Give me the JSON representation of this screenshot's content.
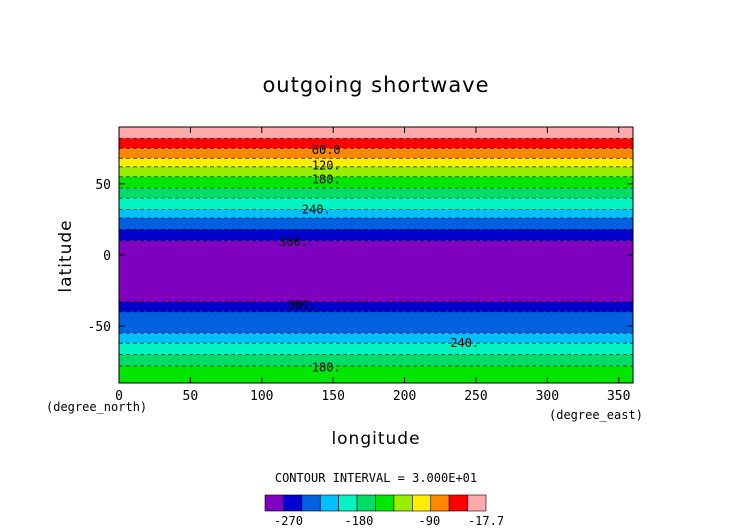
{
  "chart_data": {
    "type": "heatmap",
    "title": "outgoing shortwave",
    "xlabel": "longitude",
    "ylabel": "latitude",
    "x_unit": "(degree_east)",
    "y_unit": "(degree_north)",
    "xlim": [
      0,
      360
    ],
    "ylim": [
      -90,
      90
    ],
    "x_ticks": [
      0,
      50,
      100,
      150,
      200,
      250,
      300,
      350
    ],
    "y_ticks": [
      -50,
      0,
      50
    ],
    "contour_interval_label": "CONTOUR INTERVAL = 3.000E+01",
    "levels": [
      -300,
      -270,
      -240,
      -210,
      -180,
      -150,
      -120,
      -90,
      -60,
      -30,
      -17.7
    ],
    "colorbar_labels": [
      "-270",
      "-180",
      "-90",
      "-17.7"
    ],
    "colorbar_colors": [
      "#7f00bf",
      "#0000cc",
      "#0060e0",
      "#00c0ff",
      "#00f5c0",
      "#00dd66",
      "#00e600",
      "#99ee00",
      "#ffee00",
      "#ff8800",
      "#ff0000",
      "#ffaaaa"
    ],
    "bands": [
      {
        "lat_min": 82,
        "lat_max": 90,
        "color": "#ffaaaa"
      },
      {
        "lat_min": 75,
        "lat_max": 82,
        "color": "#ff0000"
      },
      {
        "lat_min": 68,
        "lat_max": 75,
        "color": "#ff8800"
      },
      {
        "lat_min": 62,
        "lat_max": 68,
        "color": "#ffee00"
      },
      {
        "lat_min": 55,
        "lat_max": 62,
        "color": "#99ee00"
      },
      {
        "lat_min": 47,
        "lat_max": 55,
        "color": "#00e600"
      },
      {
        "lat_min": 40,
        "lat_max": 47,
        "color": "#00dd66"
      },
      {
        "lat_min": 32,
        "lat_max": 40,
        "color": "#00f5c0"
      },
      {
        "lat_min": 26,
        "lat_max": 32,
        "color": "#00c0ff"
      },
      {
        "lat_min": 18,
        "lat_max": 26,
        "color": "#0060e0"
      },
      {
        "lat_min": 10,
        "lat_max": 18,
        "color": "#0000cc"
      },
      {
        "lat_min": -33,
        "lat_max": 10,
        "color": "#7f00bf"
      },
      {
        "lat_min": -40,
        "lat_max": -33,
        "color": "#0000cc"
      },
      {
        "lat_min": -55,
        "lat_max": -40,
        "color": "#0060e0"
      },
      {
        "lat_min": -62,
        "lat_max": -55,
        "color": "#00c0ff"
      },
      {
        "lat_min": -70,
        "lat_max": -62,
        "color": "#00f5c0"
      },
      {
        "lat_min": -78,
        "lat_max": -70,
        "color": "#00dd66"
      },
      {
        "lat_min": -90,
        "lat_max": -78,
        "color": "#00e600"
      }
    ],
    "contour_labels": [
      {
        "text": "60.0",
        "lon": 135,
        "lat": 74
      },
      {
        "text": "120.",
        "lon": 135,
        "lat": 63
      },
      {
        "text": "180.",
        "lon": 135,
        "lat": 53
      },
      {
        "text": "240.",
        "lon": 128,
        "lat": 32
      },
      {
        "text": "300.",
        "lon": 112,
        "lat": 9
      },
      {
        "text": "300.",
        "lon": 118,
        "lat": -35
      },
      {
        "text": "240.",
        "lon": 232,
        "lat": -62
      },
      {
        "text": "180.",
        "lon": 135,
        "lat": -79
      }
    ]
  }
}
